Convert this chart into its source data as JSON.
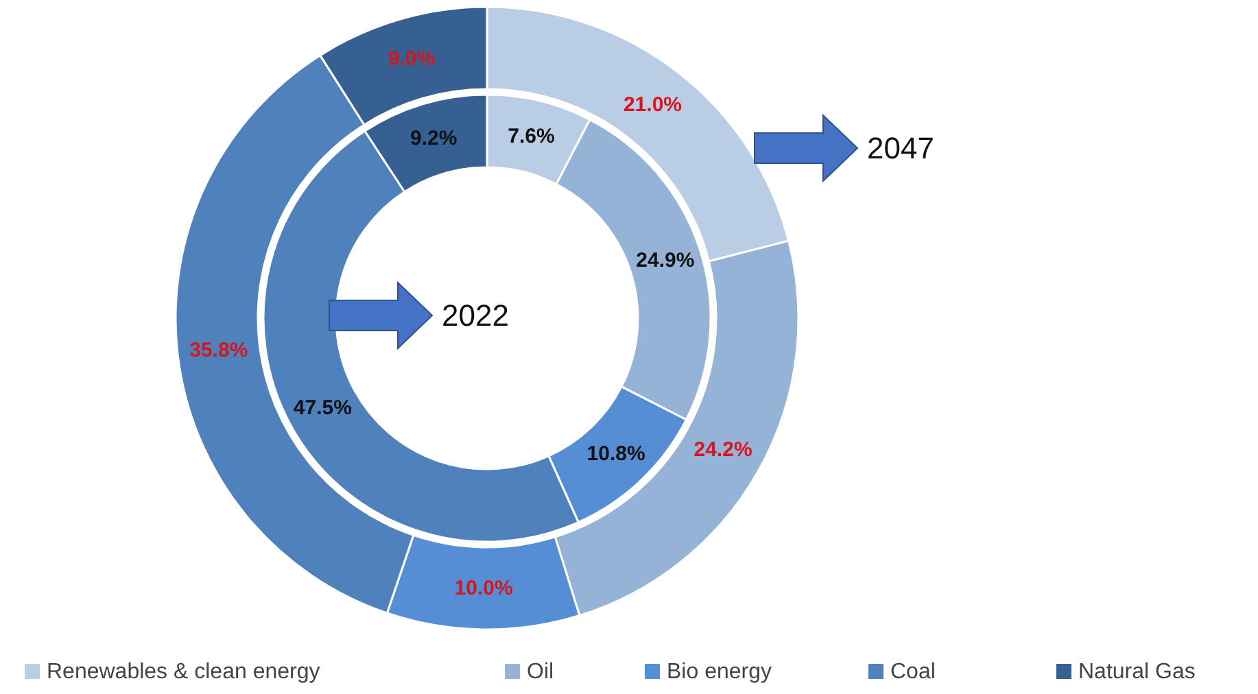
{
  "chart_data": {
    "type": "donut",
    "categories": [
      "Renewables & clean energy",
      "Oil",
      "Bio energy",
      "Coal",
      "Natural Gas"
    ],
    "colors": [
      "#b9cde5",
      "#95b3d7",
      "#558ed5",
      "#4f81bd",
      "#376092"
    ],
    "series": [
      {
        "name": "2022",
        "values": [
          7.6,
          24.9,
          10.8,
          47.5,
          9.2
        ],
        "value_labels": [
          "7.6%",
          "24.9%",
          "10.8%",
          "47.5%",
          "9.2%"
        ]
      },
      {
        "name": "2047",
        "values": [
          21.0,
          24.2,
          10.0,
          35.8,
          9.0
        ],
        "value_labels": [
          "21.0%",
          "24.2%",
          "10.0%",
          "35.8%",
          "9.0%"
        ]
      }
    ],
    "legend": "bottom"
  }
}
